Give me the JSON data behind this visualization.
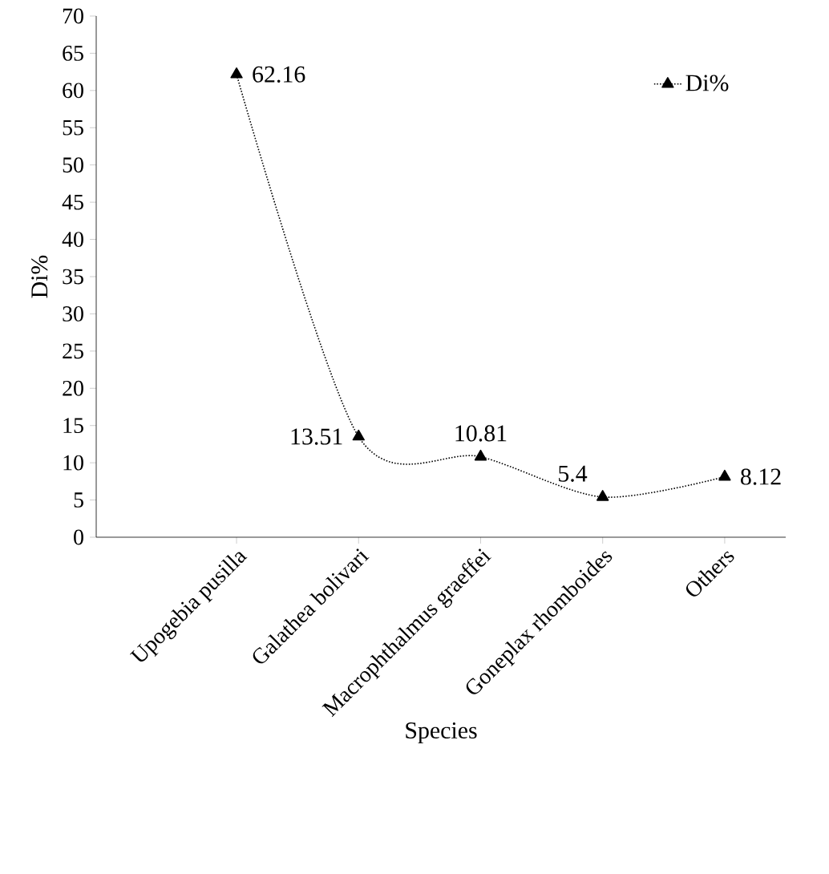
{
  "chart_data": {
    "type": "line",
    "xlabel": "Species",
    "ylabel": "Di%",
    "categories": [
      "Upogebia pusilla",
      "Galathea bolivari",
      "Macrophthalmus graeffei",
      "Goneplax rhomboides",
      "Others"
    ],
    "series": [
      {
        "name": "Di%",
        "color": "#000000",
        "values": [
          62.16,
          13.51,
          10.81,
          5.4,
          8.12
        ]
      }
    ],
    "ylim": [
      0,
      70
    ],
    "yticks": [
      0,
      5,
      10,
      15,
      20,
      25,
      30,
      35,
      40,
      45,
      50,
      55,
      60,
      65,
      70
    ],
    "marker": "triangle",
    "line_style": "dotted",
    "legend": "top right",
    "data_labels": true,
    "grid": false
  }
}
